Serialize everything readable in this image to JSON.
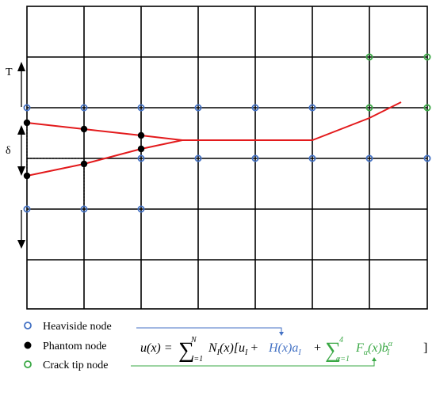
{
  "labels": {
    "traction": "T",
    "opening": "δ"
  },
  "legend": {
    "heaviside": "Heaviside node",
    "phantom": "Phantom node",
    "crack_tip": "Crack tip node"
  },
  "formula": {
    "lhs": "u(x) =",
    "sum1_upper": "N",
    "sum1_lower": "I=1",
    "term1": "N",
    "term1_sub": "I",
    "term1_rest": "(x)[u",
    "term1_rest_sub": "I",
    "plus1": "+",
    "heaviside_term": "H(x)a",
    "heaviside_sub": "I",
    "plus2": "+",
    "sum2_upper": "4",
    "sum2_lower": "α=1",
    "crack_term": "F",
    "crack_term_sub": "α",
    "crack_term_rest": "(x)b",
    "crack_term_sup": "α",
    "crack_term_sub2": "I",
    "close": "]"
  },
  "colors": {
    "grid": "#000000",
    "crack": "#e31a1c",
    "heaviside": "#4472c4",
    "phantom": "#000000",
    "crack_tip": "#3aa845"
  },
  "icons": {
    "heaviside": "open-circle-icon",
    "phantom": "filled-circle-icon",
    "crack_tip": "open-circle-icon"
  }
}
